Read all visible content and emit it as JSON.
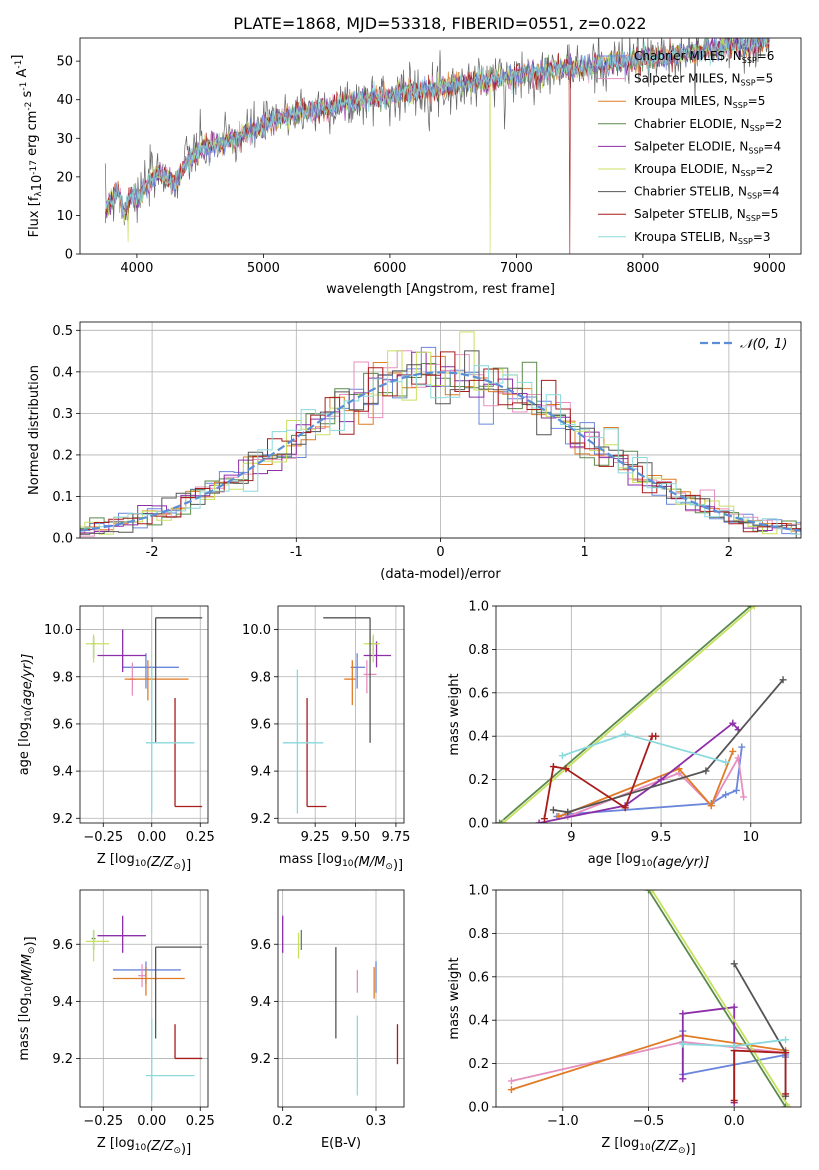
{
  "figure_title": "PLATE=1868, MJD=53318, FIBERID=0551, z=0.022",
  "models": [
    {
      "name": "Chabrier MILES",
      "n": "6",
      "color": "#6a86db"
    },
    {
      "name": "Salpeter MILES",
      "n": "5",
      "color": "#e58fc0"
    },
    {
      "name": "Kroupa MILES",
      "n": "5",
      "color": "#e07b26"
    },
    {
      "name": "Chabrier ELODIE",
      "n": "2",
      "color": "#5a8a4a"
    },
    {
      "name": "Salpeter ELODIE",
      "n": "4",
      "color": "#8c2fa8"
    },
    {
      "name": "Kroupa ELODIE",
      "n": "2",
      "color": "#c8e060"
    },
    {
      "name": "Chabrier STELIB",
      "n": "4",
      "color": "#555555"
    },
    {
      "name": "Salpeter STELIB",
      "n": "5",
      "color": "#a81c1c"
    },
    {
      "name": "Kroupa STELIB",
      "n": "3",
      "color": "#8ad9dc"
    }
  ],
  "chart_data": [
    {
      "id": "spectrum",
      "type": "line",
      "xlabel": "wavelength [Angstrom, rest frame]",
      "ylabel_main": "Flux [f",
      "ylabel_rest": "10",
      "ylabel_exp": "-17",
      "ylabel_units": " erg cm",
      "ylabel_units_exp": "-2",
      "ylabel_s": " s",
      "ylabel_s_exp": "-1",
      "ylabel_A": " A",
      "ylabel_A_exp": "-1",
      "ylabel_close": "]",
      "xlim": [
        3550,
        9250
      ],
      "ylim": [
        0,
        56
      ],
      "xticks": [
        4000,
        5000,
        6000,
        7000,
        8000,
        9000
      ],
      "yticks": [
        0,
        10,
        20,
        30,
        40,
        50
      ],
      "legend_prefix": "N",
      "legend_sub": "SSP",
      "envelope": {
        "x": [
          3750,
          3800,
          3850,
          3900,
          3950,
          4000,
          4100,
          4200,
          4300,
          4400,
          4500,
          4600,
          4700,
          4800,
          4900,
          5000,
          5100,
          5200,
          5300,
          5400,
          5500,
          5600,
          5700,
          5800,
          5900,
          6000,
          6100,
          6200,
          6300,
          6400,
          6500,
          6600,
          6700,
          6800,
          6900,
          7000,
          7100,
          7200,
          7300,
          7400,
          7500,
          7600,
          7700,
          7800,
          7900,
          8000,
          8100,
          8200,
          8300,
          8400,
          8500,
          8600,
          8700,
          8800,
          8900,
          9000
        ],
        "y": [
          11,
          14,
          17,
          10,
          16,
          14,
          19,
          21,
          18,
          24,
          27,
          28,
          29,
          30,
          32,
          33,
          35,
          36,
          37,
          37,
          38,
          39,
          39,
          40,
          41,
          41,
          42,
          42,
          43,
          43,
          44,
          44,
          45,
          45,
          46,
          46,
          47,
          47,
          48,
          48,
          48,
          49,
          49,
          50,
          50,
          51,
          51,
          51,
          52,
          52,
          53,
          53,
          54,
          54,
          55,
          56
        ]
      },
      "dips": [
        {
          "x": 3930,
          "y": 3,
          "model": "Kroupa ELODIE"
        },
        {
          "x": 6790,
          "y": 0,
          "model": "Kroupa ELODIE"
        },
        {
          "x": 7420,
          "y": 0,
          "model": "Salpeter STELIB"
        }
      ]
    },
    {
      "id": "residuals",
      "type": "histogram",
      "xlabel": "(data-model)/error",
      "ylabel": "Normed distribution",
      "xlim": [
        -2.5,
        2.5
      ],
      "ylim": [
        0,
        0.52
      ],
      "xticks": [
        -2,
        -1,
        0,
        1,
        2
      ],
      "yticks": [
        0.0,
        0.1,
        0.2,
        0.3,
        0.4,
        0.5
      ],
      "legend": "𝒩(0, 1)",
      "gaussian_color": "#5a8fd8",
      "bin_width": 0.1,
      "grid": true
    },
    {
      "id": "age_vs_Z",
      "type": "errorbar",
      "xlabel": "Z [log",
      "xlabel_sub": "10",
      "xlabel_rest": "(Z/Z",
      "xlabel_sun": "⊙",
      "xlabel_close": ")]",
      "ylabel": "age  [log",
      "ylabel_sub": "10",
      "ylabel_rest": "(age/yr)]",
      "xlim": [
        -0.37,
        0.29
      ],
      "ylim": [
        9.18,
        10.1
      ],
      "xticks": [
        -0.25,
        0.0,
        0.25
      ],
      "xticklabels": [
        "−0.25",
        "0.00",
        "0.25"
      ],
      "yticks": [
        9.2,
        9.4,
        9.6,
        9.8,
        10.0
      ],
      "points": [
        {
          "model": "Chabrier MILES",
          "x": -0.03,
          "xl": -0.15,
          "xh": 0.14,
          "y": 9.84,
          "yl": 9.75,
          "yh": 9.9
        },
        {
          "model": "Salpeter MILES",
          "x": -0.1,
          "xl": -0.12,
          "xh": -0.08,
          "y": 9.79,
          "yl": 9.72,
          "yh": 9.86
        },
        {
          "model": "Kroupa MILES",
          "x": -0.02,
          "xl": -0.14,
          "xh": 0.19,
          "y": 9.79,
          "yl": 9.7,
          "yh": 9.87
        },
        {
          "model": "Chabrier ELODIE",
          "x": -0.3,
          "xl": -0.31,
          "xh": -0.29,
          "y": 9.94,
          "yl": 9.88,
          "yh": 9.97
        },
        {
          "model": "Salpeter ELODIE",
          "x": -0.15,
          "xl": -0.28,
          "xh": -0.03,
          "y": 9.89,
          "yl": 9.82,
          "yh": 10.0
        },
        {
          "model": "Kroupa ELODIE",
          "x": -0.3,
          "xl": -0.34,
          "xh": -0.22,
          "y": 9.94,
          "yl": 9.86,
          "yh": 9.98
        },
        {
          "model": "Chabrier STELIB",
          "x": 0.02,
          "xl": 0.02,
          "xh": 0.26,
          "y": 10.05,
          "yl": 9.52,
          "yh": 10.05
        },
        {
          "model": "Salpeter STELIB",
          "x": 0.12,
          "xl": 0.12,
          "xh": 0.26,
          "y": 9.25,
          "yl": 9.25,
          "yh": 9.71
        },
        {
          "model": "Kroupa STELIB",
          "x": -0.0,
          "xl": -0.03,
          "xh": 0.22,
          "y": 9.52,
          "yl": 9.22,
          "yh": 9.84
        }
      ]
    },
    {
      "id": "age_vs_mass",
      "type": "errorbar",
      "xlabel": "mass [log",
      "xlabel_sub": "10",
      "xlabel_rest": "(M/M",
      "xlabel_sun": "⊙",
      "xlabel_close": ")]",
      "xlim": [
        9.02,
        9.8
      ],
      "ylim": [
        9.18,
        10.1
      ],
      "xticks": [
        9.25,
        9.5,
        9.75
      ],
      "xticklabels": [
        "9.25",
        "9.50",
        "9.75"
      ],
      "yticks": [
        9.2,
        9.4,
        9.6,
        9.8,
        10.0
      ],
      "points": [
        {
          "model": "Chabrier MILES",
          "x": 9.51,
          "xl": 9.47,
          "xh": 9.56,
          "y": 9.84,
          "yl": 9.75,
          "yh": 9.9
        },
        {
          "model": "Salpeter MILES",
          "x": 9.57,
          "xl": 9.55,
          "xh": 9.63,
          "y": 9.81,
          "yl": 9.73,
          "yh": 9.87
        },
        {
          "model": "Kroupa MILES",
          "x": 9.48,
          "xl": 9.43,
          "xh": 9.5,
          "y": 9.79,
          "yl": 9.68,
          "yh": 9.87
        },
        {
          "model": "Chabrier ELODIE",
          "x": 9.61,
          "xl": 9.59,
          "xh": 9.63,
          "y": 9.94,
          "yl": 9.9,
          "yh": 9.97
        },
        {
          "model": "Salpeter ELODIE",
          "x": 9.63,
          "xl": 9.55,
          "xh": 9.72,
          "y": 9.89,
          "yl": 9.84,
          "yh": 9.95
        },
        {
          "model": "Kroupa ELODIE",
          "x": 9.61,
          "xl": 9.55,
          "xh": 9.65,
          "y": 9.94,
          "yl": 9.86,
          "yh": 9.98
        },
        {
          "model": "Chabrier STELIB",
          "x": 9.59,
          "xl": 9.3,
          "xh": 9.59,
          "y": 10.05,
          "yl": 9.52,
          "yh": 10.05
        },
        {
          "model": "Salpeter STELIB",
          "x": 9.2,
          "xl": 9.2,
          "xh": 9.32,
          "y": 9.25,
          "yl": 9.25,
          "yh": 9.71
        },
        {
          "model": "Kroupa STELIB",
          "x": 9.14,
          "xl": 9.05,
          "xh": 9.3,
          "y": 9.52,
          "yl": 9.22,
          "yh": 9.83
        }
      ]
    },
    {
      "id": "weight_vs_age",
      "type": "line",
      "xlabel": "age  [log",
      "xlabel_sub": "10",
      "xlabel_rest": "(age/yr)]",
      "ylabel": "mass weight",
      "xlim": [
        8.58,
        10.28
      ],
      "ylim": [
        0,
        1
      ],
      "xticks": [
        9.0,
        9.5,
        10.0
      ],
      "yticks": [
        0.0,
        0.2,
        0.4,
        0.6,
        0.8,
        1.0
      ],
      "grid": true,
      "series": [
        {
          "model": "Chabrier MILES",
          "x": [
            8.92,
            8.97,
            9.78,
            9.86,
            9.92,
            9.95
          ],
          "y": [
            0.03,
            0.04,
            0.09,
            0.13,
            0.15,
            0.35
          ]
        },
        {
          "model": "Salpeter MILES",
          "x": [
            8.98,
            9.6,
            9.78,
            9.93,
            9.96
          ],
          "y": [
            0.03,
            0.23,
            0.08,
            0.3,
            0.12
          ]
        },
        {
          "model": "Kroupa MILES",
          "x": [
            8.93,
            9.6,
            9.78,
            9.9
          ],
          "y": [
            0.03,
            0.25,
            0.08,
            0.33
          ]
        },
        {
          "model": "Chabrier ELODIE",
          "x": [
            8.6,
            10.0
          ],
          "y": [
            0.0,
            1.0
          ]
        },
        {
          "model": "Salpeter ELODIE",
          "x": [
            8.82,
            9.3,
            9.5,
            9.9,
            9.93
          ],
          "y": [
            0.0,
            0.08,
            0.2,
            0.46,
            0.43
          ]
        },
        {
          "model": "Kroupa ELODIE",
          "x": [
            8.62,
            10.02
          ],
          "y": [
            0.0,
            1.0
          ]
        },
        {
          "model": "Chabrier STELIB",
          "x": [
            8.9,
            8.98,
            9.75,
            10.18
          ],
          "y": [
            0.06,
            0.05,
            0.24,
            0.66
          ]
        },
        {
          "model": "Salpeter STELIB",
          "x": [
            8.85,
            8.9,
            8.97,
            9.3,
            9.45,
            9.47
          ],
          "y": [
            0.02,
            0.26,
            0.25,
            0.07,
            0.4,
            0.4
          ]
        },
        {
          "model": "Kroupa STELIB",
          "x": [
            8.95,
            9.3,
            9.86
          ],
          "y": [
            0.31,
            0.41,
            0.28
          ]
        }
      ]
    },
    {
      "id": "mass_vs_Z",
      "type": "errorbar",
      "xlabel": "Z [log",
      "xlabel_sub": "10",
      "xlabel_rest": "(Z/Z",
      "xlabel_sun": "⊙",
      "xlabel_close": ")]",
      "ylabel": "mass [log",
      "ylabel_sub": "10",
      "ylabel_rest": "(M/M",
      "ylabel_sun": "⊙",
      "ylabel_close": ")]",
      "xlim": [
        -0.37,
        0.29
      ],
      "ylim": [
        9.03,
        9.79
      ],
      "xticks": [
        -0.25,
        0.0,
        0.25
      ],
      "xticklabels": [
        "−0.25",
        "0.00",
        "0.25"
      ],
      "yticks": [
        9.2,
        9.4,
        9.6
      ],
      "points": [
        {
          "model": "Chabrier MILES",
          "x": -0.03,
          "xl": -0.2,
          "xh": 0.15,
          "y": 9.51,
          "yl": 9.46,
          "yh": 9.54
        },
        {
          "model": "Salpeter MILES",
          "x": -0.05,
          "xl": -0.07,
          "xh": -0.03,
          "y": 9.49,
          "yl": 9.45,
          "yh": 9.53
        },
        {
          "model": "Kroupa MILES",
          "x": -0.03,
          "xl": -0.2,
          "xh": 0.17,
          "y": 9.48,
          "yl": 9.42,
          "yh": 9.52
        },
        {
          "model": "Chabrier ELODIE",
          "x": -0.3,
          "xl": -0.31,
          "xh": -0.29,
          "y": 9.62,
          "yl": 9.58,
          "yh": 9.65
        },
        {
          "model": "Salpeter ELODIE",
          "x": -0.15,
          "xl": -0.28,
          "xh": -0.03,
          "y": 9.63,
          "yl": 9.57,
          "yh": 9.7
        },
        {
          "model": "Kroupa ELODIE",
          "x": -0.3,
          "xl": -0.34,
          "xh": -0.22,
          "y": 9.61,
          "yl": 9.54,
          "yh": 9.65
        },
        {
          "model": "Chabrier STELIB",
          "x": 0.02,
          "xl": 0.02,
          "xh": 0.26,
          "y": 9.59,
          "yl": 9.27,
          "yh": 9.59
        },
        {
          "model": "Salpeter STELIB",
          "x": 0.12,
          "xl": 0.12,
          "xh": 0.26,
          "y": 9.2,
          "yl": 9.2,
          "yh": 9.32
        },
        {
          "model": "Kroupa STELIB",
          "x": -0.0,
          "xl": -0.03,
          "xh": 0.22,
          "y": 9.14,
          "yl": 9.05,
          "yh": 9.34
        }
      ]
    },
    {
      "id": "mass_vs_ebv",
      "type": "errorbar",
      "xlabel": "E(B-V)",
      "xlim": [
        0.195,
        0.33
      ],
      "ylim": [
        9.03,
        9.79
      ],
      "xticks": [
        0.2,
        0.3
      ],
      "xticklabels": [
        "0.2",
        "0.3"
      ],
      "yticks": [
        9.2,
        9.4,
        9.6
      ],
      "points": [
        {
          "model": "Chabrier MILES",
          "x": 0.3,
          "xl": 0.3,
          "xh": 0.3,
          "y": 9.49,
          "yl": 9.43,
          "yh": 9.54
        },
        {
          "model": "Salpeter MILES",
          "x": 0.28,
          "xl": 0.28,
          "xh": 0.28,
          "y": 9.46,
          "yl": 9.43,
          "yh": 9.51
        },
        {
          "model": "Kroupa MILES",
          "x": 0.298,
          "xl": 0.298,
          "xh": 0.298,
          "y": 9.45,
          "yl": 9.41,
          "yh": 9.52
        },
        {
          "model": "Chabrier ELODIE",
          "x": 0.22,
          "xl": 0.22,
          "xh": 0.22,
          "y": 9.62,
          "yl": 9.58,
          "yh": 9.65
        },
        {
          "model": "Salpeter ELODIE",
          "x": 0.2,
          "xl": 0.2,
          "xh": 0.2,
          "y": 9.63,
          "yl": 9.57,
          "yh": 9.7
        },
        {
          "model": "Kroupa ELODIE",
          "x": 0.217,
          "xl": 0.217,
          "xh": 0.217,
          "y": 9.6,
          "yl": 9.55,
          "yh": 9.64
        },
        {
          "model": "Chabrier STELIB",
          "x": 0.257,
          "xl": 0.257,
          "xh": 0.257,
          "y": 9.45,
          "yl": 9.27,
          "yh": 9.59
        },
        {
          "model": "Salpeter STELIB",
          "x": 0.323,
          "xl": 0.323,
          "xh": 0.323,
          "y": 9.25,
          "yl": 9.18,
          "yh": 9.32
        },
        {
          "model": "Kroupa STELIB",
          "x": 0.28,
          "xl": 0.28,
          "xh": 0.28,
          "y": 9.2,
          "yl": 9.07,
          "yh": 9.35
        }
      ]
    },
    {
      "id": "weight_vs_Z",
      "type": "line",
      "xlabel": "Z [log",
      "xlabel_sub": "10",
      "xlabel_rest": "(Z/Z",
      "xlabel_sun": "⊙",
      "xlabel_close": ")]",
      "ylabel": "mass weight",
      "xlim": [
        -1.39,
        0.39
      ],
      "ylim": [
        0,
        1
      ],
      "xticks": [
        -1.0,
        -0.5,
        0.0
      ],
      "xticklabels": [
        "−1.0",
        "−0.5",
        "0.0"
      ],
      "yticks": [
        0.0,
        0.2,
        0.4,
        0.6,
        0.8,
        1.0
      ],
      "grid": true,
      "series": [
        {
          "model": "Chabrier MILES",
          "x": [
            -0.3,
            -0.3,
            0.3,
            0.3
          ],
          "y": [
            0.35,
            0.15,
            0.24,
            0.23
          ]
        },
        {
          "model": "Salpeter MILES",
          "x": [
            -1.3,
            -0.3,
            0.3
          ],
          "y": [
            0.12,
            0.3,
            0.25
          ]
        },
        {
          "model": "Kroupa MILES",
          "x": [
            -1.3,
            -0.3,
            0.3
          ],
          "y": [
            0.08,
            0.33,
            0.26
          ]
        },
        {
          "model": "Chabrier ELODIE",
          "x": [
            -0.5,
            0.3
          ],
          "y": [
            1.0,
            0.0
          ]
        },
        {
          "model": "Salpeter ELODIE",
          "x": [
            -0.3,
            -0.3,
            0.0,
            0.0
          ],
          "y": [
            0.13,
            0.43,
            0.46,
            0.02
          ]
        },
        {
          "model": "Kroupa ELODIE",
          "x": [
            -0.48,
            0.32
          ],
          "y": [
            1.0,
            0.0
          ]
        },
        {
          "model": "Chabrier STELIB",
          "x": [
            0.0,
            0.3,
            0.3
          ],
          "y": [
            0.66,
            0.25,
            0.05
          ]
        },
        {
          "model": "Salpeter STELIB",
          "x": [
            0.0,
            0.0,
            0.3,
            0.3
          ],
          "y": [
            0.03,
            0.26,
            0.25,
            0.06
          ]
        },
        {
          "model": "Kroupa STELIB",
          "x": [
            -0.3,
            0.0,
            0.3
          ],
          "y": [
            0.29,
            0.28,
            0.31
          ]
        }
      ]
    }
  ]
}
